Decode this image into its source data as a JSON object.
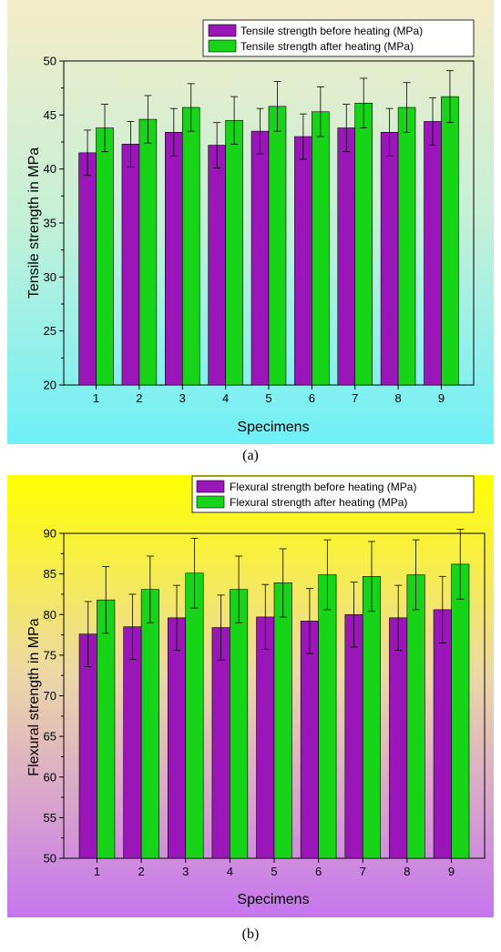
{
  "chart_data": [
    {
      "type": "bar",
      "panel_label": "(a)",
      "xlabel": "Specimens",
      "ylabel": "Tensile strength in MPa",
      "categories": [
        "1",
        "2",
        "3",
        "4",
        "5",
        "6",
        "7",
        "8",
        "9"
      ],
      "ylim": [
        20,
        50
      ],
      "yticks": [
        "20",
        "25",
        "30",
        "35",
        "40",
        "45",
        "50"
      ],
      "legend_position": "top-right",
      "series": [
        {
          "name": "Tensile strength before heating (MPa)",
          "color": "#9a16b8",
          "values": [
            41.5,
            42.3,
            43.4,
            42.2,
            43.5,
            43.0,
            43.8,
            43.4,
            44.4
          ],
          "errors": [
            2.1,
            2.1,
            2.2,
            2.1,
            2.1,
            2.1,
            2.2,
            2.2,
            2.2
          ]
        },
        {
          "name": "Tensile strength after heating (MPa)",
          "color": "#18d418",
          "values": [
            43.8,
            44.6,
            45.7,
            44.5,
            45.8,
            45.3,
            46.1,
            45.7,
            46.7
          ],
          "errors": [
            2.2,
            2.2,
            2.2,
            2.2,
            2.3,
            2.3,
            2.3,
            2.3,
            2.4
          ]
        }
      ]
    },
    {
      "type": "bar",
      "panel_label": "(b)",
      "xlabel": "Specimens",
      "ylabel": "Flexural strength in MPa",
      "categories": [
        "1",
        "2",
        "3",
        "4",
        "5",
        "6",
        "7",
        "8",
        "9"
      ],
      "ylim": [
        50,
        90
      ],
      "yticks": [
        "50",
        "55",
        "60",
        "65",
        "70",
        "75",
        "80",
        "85",
        "90"
      ],
      "legend_position": "top-right",
      "series": [
        {
          "name": "Flexural strength before heating (MPa)",
          "color": "#9a16b8",
          "values": [
            77.6,
            78.5,
            79.6,
            78.4,
            79.7,
            79.2,
            80.0,
            79.6,
            80.6
          ],
          "errors": [
            4.0,
            4.0,
            4.0,
            4.0,
            4.0,
            4.0,
            4.0,
            4.0,
            4.1
          ]
        },
        {
          "name": "Flexural strength after heating (MPa)",
          "color": "#18d418",
          "values": [
            81.8,
            83.1,
            85.1,
            83.1,
            83.9,
            84.9,
            84.7,
            84.9,
            86.2
          ],
          "errors": [
            4.1,
            4.1,
            4.3,
            4.1,
            4.2,
            4.3,
            4.3,
            4.3,
            4.3
          ]
        }
      ]
    }
  ]
}
